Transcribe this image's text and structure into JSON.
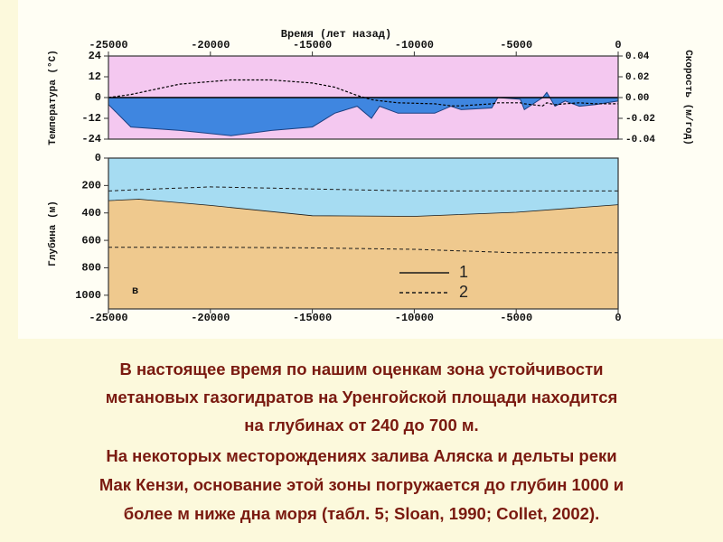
{
  "chart_data": [
    {
      "type": "area",
      "title": "Время (лет назад)",
      "ylabel": "Температура (°C)",
      "y2label": "Скорость (м/год)",
      "x": [
        -25000,
        -23900,
        -21500,
        -19000,
        -17000,
        -15000,
        -13900,
        -12800,
        -12100,
        -11700,
        -10800,
        -9000,
        -8200,
        -7700,
        -6200,
        -5900,
        -4800,
        -4600,
        -3700,
        -3500,
        -3100,
        -2600,
        -1900,
        -1100,
        0
      ],
      "xlim": [
        -25000,
        0
      ],
      "xticks": [
        -25000,
        -20000,
        -15000,
        -10000,
        -5000,
        0
      ],
      "ylim": [
        -24,
        24
      ],
      "yticks": [
        -24,
        -12,
        0,
        12,
        24
      ],
      "y2lim": [
        -0.04,
        0.04
      ],
      "y2ticks": [
        -0.04,
        -0.02,
        {
          "value": 0,
          "label": "0.00"
        },
        0.02,
        0.04
      ],
      "background": "#f4c8f0",
      "zero_line": true,
      "series": [
        {
          "color": "#3f86e0",
          "style": "area",
          "values": [
            -4,
            -17,
            -19,
            -22,
            -19,
            -17,
            -9,
            -5,
            -12,
            -5,
            -9,
            -9,
            -5,
            -7,
            -6,
            0,
            -1,
            -7,
            0,
            3,
            -5,
            -2,
            -5,
            -4,
            -2
          ]
        },
        {
          "color": "#000000",
          "style": "dashed",
          "axis": "y2",
          "values": [
            0,
            0.003,
            0.013,
            0.017,
            0.017,
            0.014,
            0.01,
            0.002,
            -0.002,
            -0.003,
            -0.005,
            -0.006,
            -0.008,
            -0.008,
            -0.006,
            -0.005,
            -0.005,
            -0.006,
            -0.008,
            -0.005,
            -0.007,
            -0.006,
            -0.005,
            -0.006,
            -0.006
          ]
        }
      ]
    },
    {
      "type": "line",
      "ylabel": "Глубина (м)",
      "panel_label": "в",
      "x": [
        -25000,
        -23500,
        -20000,
        -15000,
        -10000,
        -5000,
        0
      ],
      "xlim": [
        -25000,
        0
      ],
      "xticks": [
        -25000,
        -20000,
        -15000,
        -10000,
        -5000,
        0
      ],
      "ylim": [
        0,
        1100
      ],
      "yticks": [
        0,
        200,
        400,
        600,
        800,
        1000
      ],
      "y_inverted": true,
      "background": "#a6dcf2",
      "legend": "lower-right",
      "series": [
        {
          "name": "1",
          "color": "#1a1a1a",
          "style": "solid",
          "fill_below": "#efc98e",
          "values": [
            310,
            300,
            345,
            420,
            425,
            395,
            340
          ]
        },
        {
          "name": "2",
          "color": "#1a1a1a",
          "style": "dashed",
          "values": [
            240,
            230,
            210,
            225,
            240,
            240,
            240
          ]
        },
        {
          "color": "#1a1a1a",
          "style": "dashed",
          "values": [
            650,
            650,
            650,
            655,
            665,
            690,
            690
          ]
        }
      ]
    }
  ],
  "text": {
    "lines": [
      "В настоящее время по нашим оценкам зона устойчивости",
      "метановых газогидратов на Уренгойской площади находится",
      "на глубинах от 240 до 700 м.",
      "На некоторых месторождениях залива Аляска и дельты реки",
      "Мак Кензи, основание этой зоны погружается до глубин 1000 и",
      "более м ниже дна моря (табл. 5; Sloan, 1990; Collet, 2002)."
    ]
  }
}
